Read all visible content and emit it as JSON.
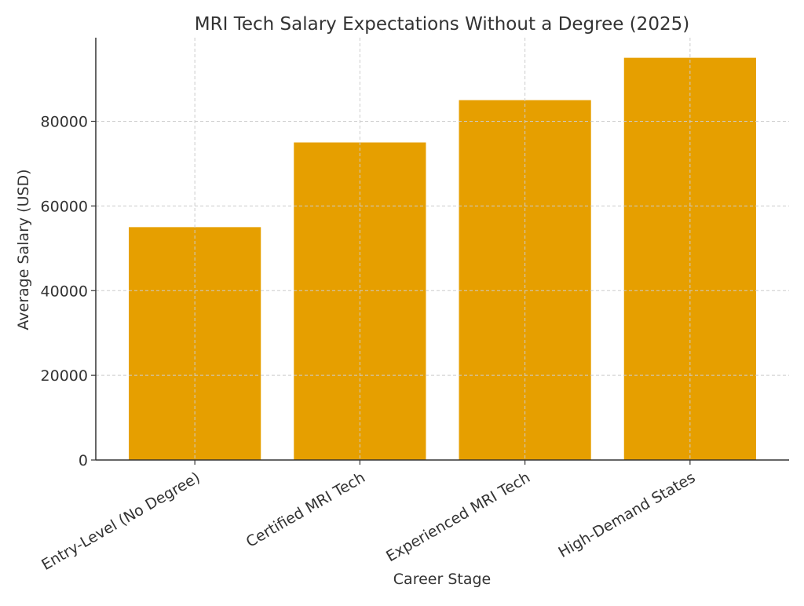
{
  "chart_data": {
    "type": "bar",
    "title": "MRI Tech Salary Expectations Without a Degree (2025)",
    "xlabel": "Career Stage",
    "ylabel": "Average Salary (USD)",
    "categories": [
      "Entry-Level (No Degree)",
      "Certified MRI Tech",
      "Experienced MRI Tech",
      "High-Demand States"
    ],
    "values": [
      55000,
      75000,
      85000,
      95000
    ],
    "ylim": [
      0,
      99750
    ],
    "yticks": [
      0,
      20000,
      40000,
      60000,
      80000
    ],
    "grid": true,
    "bar_color": "#E69F00"
  }
}
